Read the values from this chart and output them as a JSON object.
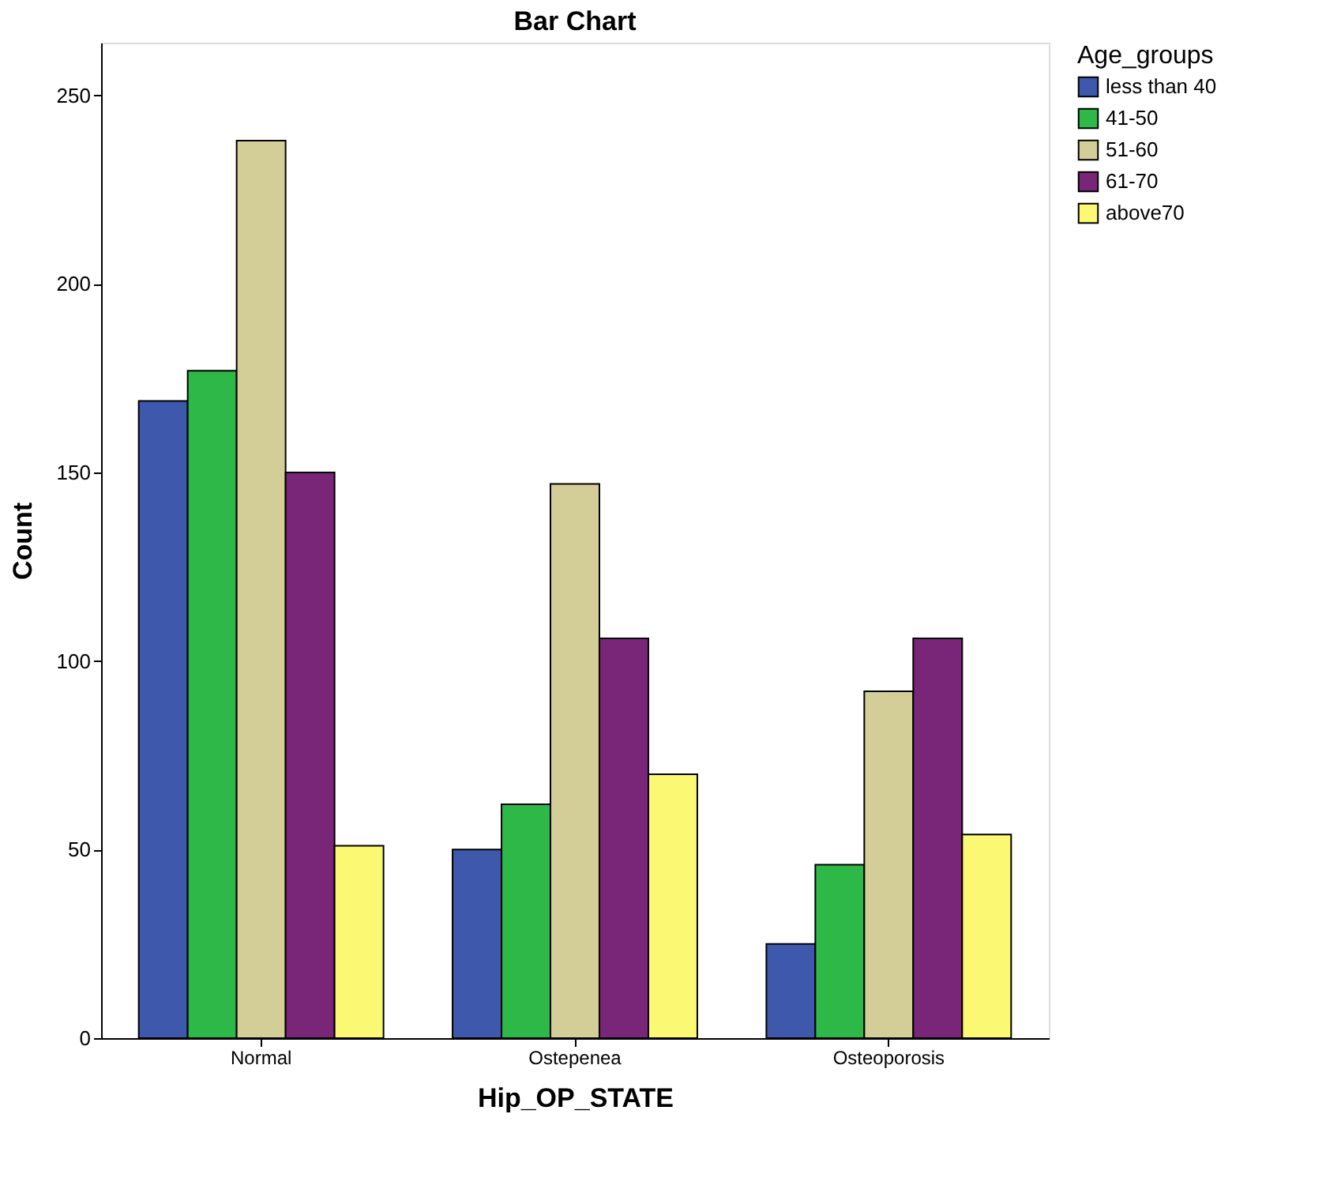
{
  "chart_data": {
    "type": "bar",
    "title": "Bar Chart",
    "xlabel": "Hip_OP_STATE",
    "ylabel": "Count",
    "legend_title": "Age_groups",
    "legend": "top right",
    "grid": false,
    "categories": [
      "Normal",
      "Ostepenea",
      "Osteoporosis"
    ],
    "series": [
      {
        "name": "less than 40",
        "color": "#3e58ac",
        "values": [
          169,
          50,
          25
        ]
      },
      {
        "name": "41-50",
        "color": "#2eb848",
        "values": [
          177,
          62,
          46
        ]
      },
      {
        "name": "51-60",
        "color": "#d3ce97",
        "values": [
          238,
          147,
          92
        ]
      },
      {
        "name": "61-70",
        "color": "#7a2678",
        "values": [
          150,
          106,
          106
        ]
      },
      {
        "name": "above70",
        "color": "#fbf873",
        "values": [
          51,
          70,
          54
        ]
      }
    ],
    "ylim": [
      0,
      264
    ],
    "yticks": [
      0,
      50,
      100,
      150,
      200,
      250
    ]
  }
}
